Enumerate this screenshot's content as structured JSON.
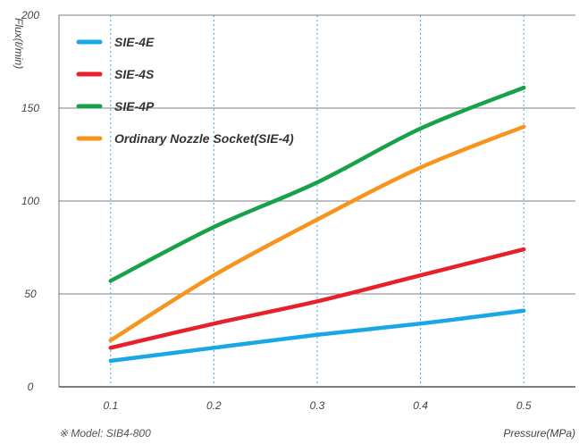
{
  "chart_data": {
    "type": "line",
    "ylabel": "Flux(ℓ/min)",
    "xlabel": "Pressure(MPa)",
    "note": "※ Model: SIB4-800",
    "x": [
      0.1,
      0.2,
      0.3,
      0.4,
      0.5
    ],
    "x_ticks": [
      "0.1",
      "0.2",
      "0.3",
      "0.4",
      "0.5"
    ],
    "y_ticks": [
      "0",
      "50",
      "100",
      "150",
      "200"
    ],
    "xlim": [
      0.05,
      0.55
    ],
    "ylim": [
      0,
      200
    ],
    "grid": {
      "horizontal": true,
      "vertical": "dashed"
    },
    "legend_position": "top-left",
    "series": [
      {
        "name": "SIE-4E",
        "color": "#1aa7e8",
        "values": [
          14,
          21,
          28,
          34,
          41
        ]
      },
      {
        "name": "SIE-4S",
        "color": "#e8202a",
        "values": [
          21,
          34,
          46,
          60,
          74
        ]
      },
      {
        "name": "SIE-4P",
        "color": "#17a148",
        "values": [
          57,
          86,
          110,
          139,
          161
        ]
      },
      {
        "name": "Ordinary Nozzle Socket(SIE-4)",
        "color": "#f7941d",
        "values": [
          25,
          60,
          90,
          118,
          140
        ]
      }
    ]
  }
}
